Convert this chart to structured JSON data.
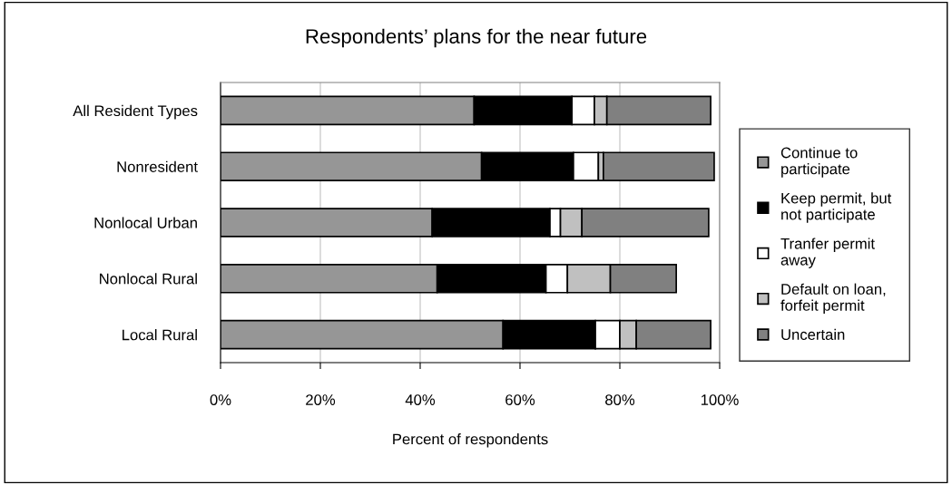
{
  "chart_data": {
    "type": "bar",
    "orientation": "horizontal",
    "stacked": true,
    "title": "Respondents’ plans for the near future",
    "xlabel": "Percent of respondents",
    "categories": [
      "All Resident Types",
      "Nonresident",
      "Nonlocal Urban",
      "Nonlocal Rural",
      "Local Rural"
    ],
    "series": [
      {
        "name": "Continue to\nparticipate",
        "color": "#969696",
        "values": [
          50.8,
          52.3,
          42.4,
          43.4,
          56.6
        ]
      },
      {
        "name": "Keep permit, but\nnot participate",
        "color": "#000000",
        "values": [
          19.6,
          18.4,
          23.6,
          21.8,
          18.5
        ]
      },
      {
        "name": "Tranfer permit\naway",
        "color": "#ffffff",
        "values": [
          4.5,
          5.0,
          2.1,
          4.3,
          4.9
        ]
      },
      {
        "name": "Default on loan,\nforfeit permit",
        "color": "#c0c0c0",
        "values": [
          2.5,
          1.0,
          4.3,
          8.6,
          3.3
        ]
      },
      {
        "name": "Uncertain",
        "color": "#808080",
        "values": [
          20.8,
          22.2,
          25.4,
          13.2,
          14.9
        ]
      }
    ],
    "xlim": [
      0,
      100
    ],
    "xticks": [
      {
        "value": 0,
        "label": "0%"
      },
      {
        "value": 20,
        "label": "20%"
      },
      {
        "value": 40,
        "label": "40%"
      },
      {
        "value": 60,
        "label": "60%"
      },
      {
        "value": 80,
        "label": "80%"
      },
      {
        "value": 100,
        "label": "100%"
      }
    ],
    "grid": "x",
    "legend": "right"
  }
}
